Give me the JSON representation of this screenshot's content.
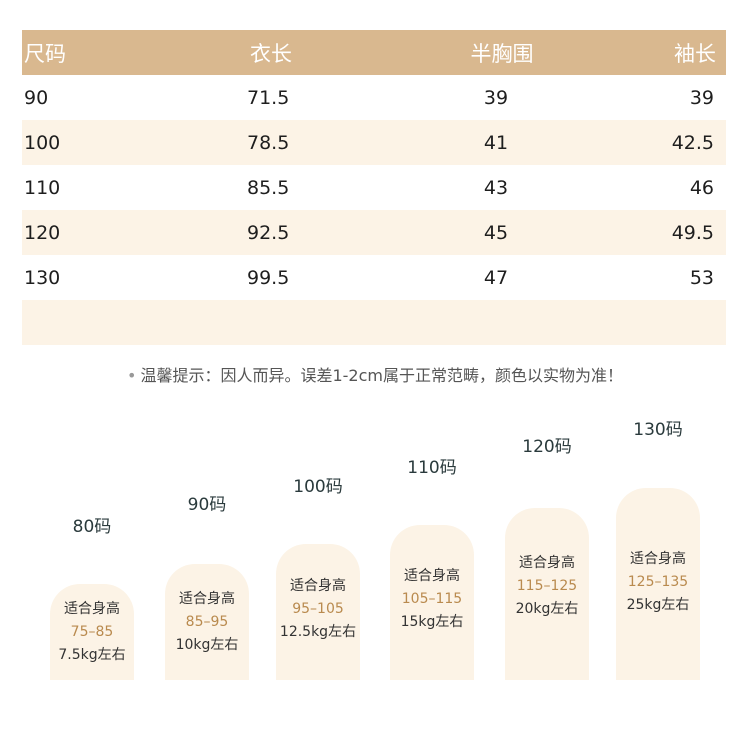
{
  "table": {
    "headers": [
      "尺码",
      "衣长",
      "半胸围",
      "袖长"
    ],
    "rows": [
      [
        "90",
        "71.5",
        "39",
        "39"
      ],
      [
        "100",
        "78.5",
        "41",
        "42.5"
      ],
      [
        "110",
        "85.5",
        "43",
        "46"
      ],
      [
        "120",
        "92.5",
        "45",
        "49.5"
      ],
      [
        "130",
        "99.5",
        "47",
        "53"
      ]
    ]
  },
  "tip": "温馨提示：因人而异。误差1-2cm属于正常范畴，颜色以实物为准！",
  "size_guide": [
    {
      "size": "80码",
      "label": "适合身高",
      "height": "75–85",
      "weight": "7.5kg左右"
    },
    {
      "size": "90码",
      "label": "适合身高",
      "height": "85–95",
      "weight": "10kg左右"
    },
    {
      "size": "100码",
      "label": "适合身高",
      "height": "95–105",
      "weight": "12.5kg左右"
    },
    {
      "size": "110码",
      "label": "适合身高",
      "height": "105–115",
      "weight": "15kg左右"
    },
    {
      "size": "120码",
      "label": "适合身高",
      "height": "115–125",
      "weight": "20kg左右"
    },
    {
      "size": "130码",
      "label": "适合身高",
      "height": "125–135",
      "weight": "25kg左右"
    }
  ],
  "colors": {
    "header": "#d9b88f",
    "shade": "#fcf3e6",
    "accent": "#b98a4e"
  }
}
